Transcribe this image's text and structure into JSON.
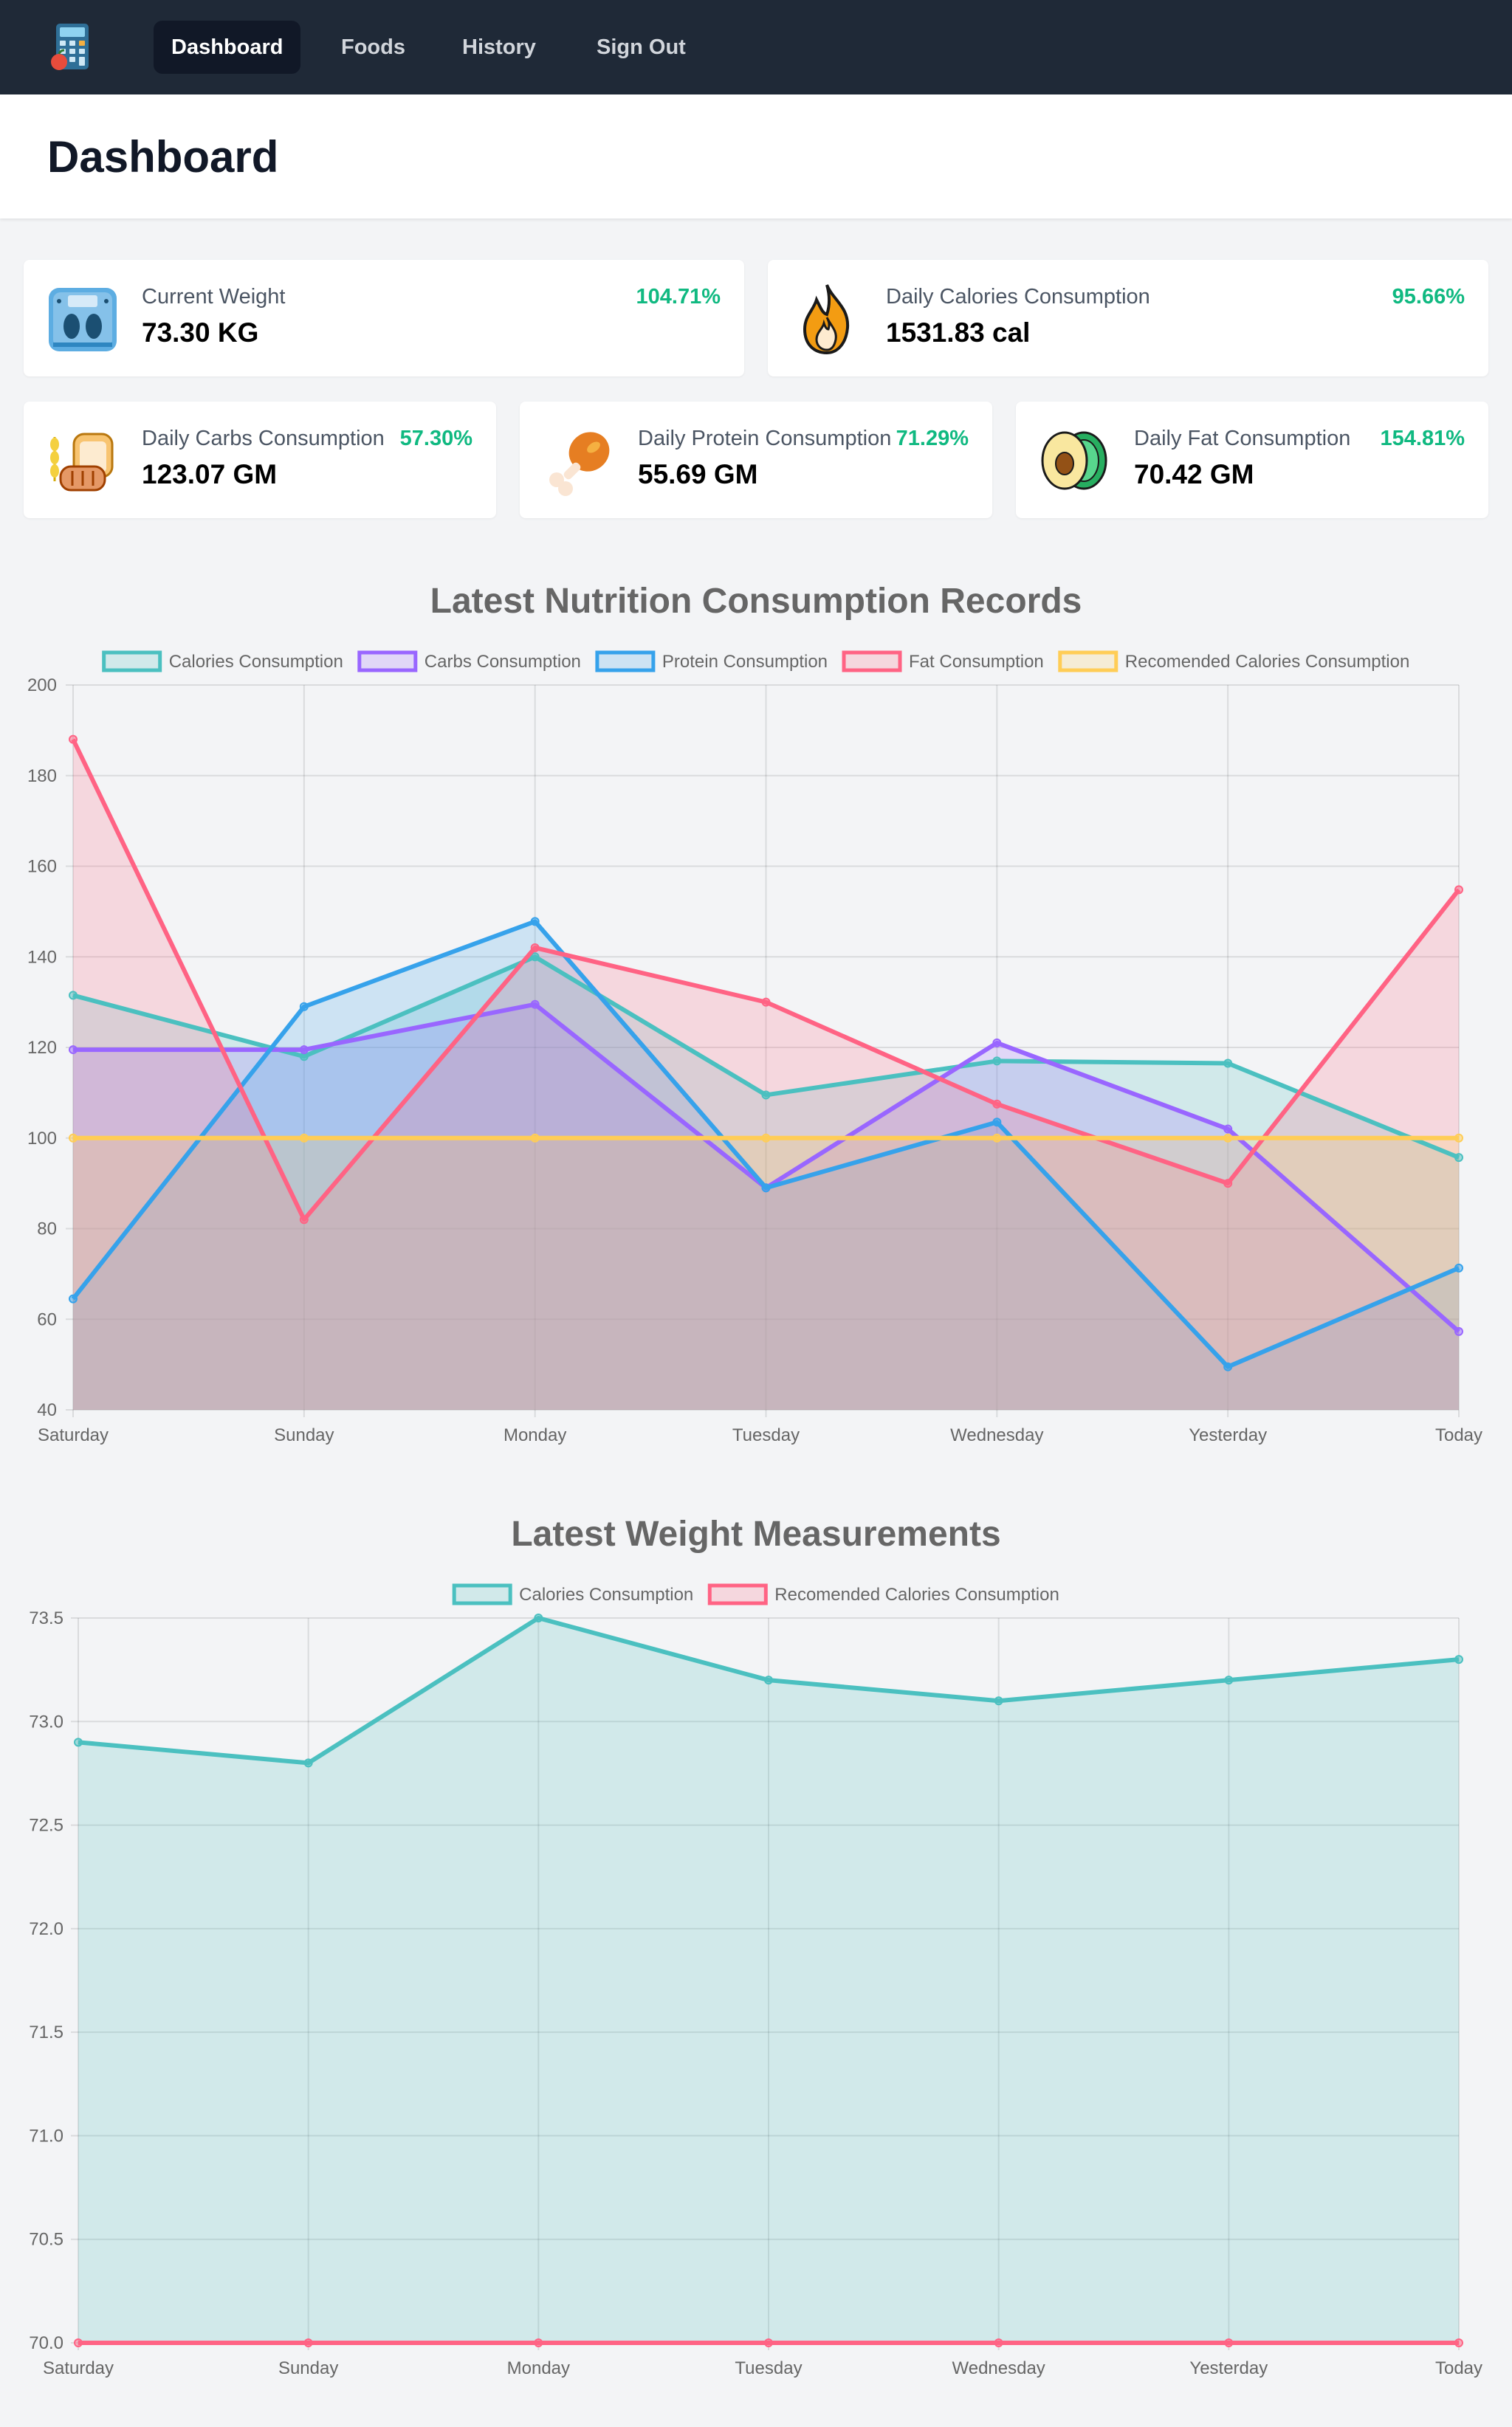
{
  "nav": {
    "logo_icon": "calculator-apple-icon",
    "links": [
      {
        "label": "Dashboard",
        "active": true
      },
      {
        "label": "Foods",
        "active": false
      },
      {
        "label": "History",
        "active": false
      },
      {
        "label": "Sign Out",
        "active": false
      }
    ]
  },
  "header": {
    "title": "Dashboard"
  },
  "stats": [
    {
      "icon": "scale-icon",
      "label": "Current Weight",
      "value": "73.30 KG",
      "percent": "104.71%"
    },
    {
      "icon": "flame-icon",
      "label": "Daily Calories Consumption",
      "value": "1531.83 cal",
      "percent": "95.66%"
    },
    {
      "icon": "bread-icon",
      "label": "Daily Carbs Consumption",
      "value": "123.07 GM",
      "percent": "57.30%"
    },
    {
      "icon": "chicken-leg-icon",
      "label": "Daily Protein Consumption",
      "value": "55.69 GM",
      "percent": "71.29%"
    },
    {
      "icon": "avocado-icon",
      "label": "Daily Fat Consumption",
      "value": "70.42 GM",
      "percent": "154.81%"
    }
  ],
  "colors": {
    "accent_positive": "#10b981",
    "nav_bg": "#1f2937",
    "teal": "#4bc0c0",
    "purple": "#9966ff",
    "blue": "#36a2eb",
    "pink": "#ff6384",
    "yellow": "#ffcd56"
  },
  "chart_data": [
    {
      "type": "line",
      "title": "Latest Nutrition Consumption Records",
      "categories": [
        "Saturday",
        "Sunday",
        "Monday",
        "Tuesday",
        "Wednesday",
        "Yesterday",
        "Today"
      ],
      "ylim": [
        40,
        200
      ],
      "yticks": [
        "40",
        "60",
        "80",
        "100",
        "120",
        "140",
        "160",
        "180",
        "200"
      ],
      "grid": true,
      "legend_position": "top",
      "filled": true,
      "series": [
        {
          "name": "Calories Consumption",
          "color": "#4bc0c0",
          "values": [
            131.5,
            118,
            140,
            109.5,
            117,
            116.5,
            95.7
          ]
        },
        {
          "name": "Carbs Consumption",
          "color": "#9966ff",
          "values": [
            119.5,
            119.5,
            129.5,
            89,
            121,
            102,
            57.3
          ]
        },
        {
          "name": "Protein Consumption",
          "color": "#36a2eb",
          "values": [
            64.5,
            129,
            147.8,
            89,
            103.5,
            49.5,
            71.3
          ]
        },
        {
          "name": "Fat Consumption",
          "color": "#ff6384",
          "values": [
            188,
            82,
            142,
            130,
            107.5,
            90,
            154.8
          ]
        },
        {
          "name": "Recomended Calories Consumption",
          "color": "#ffcd56",
          "values": [
            100,
            100,
            100,
            100,
            100,
            100,
            100
          ]
        }
      ]
    },
    {
      "type": "line",
      "title": "Latest Weight Measurements",
      "categories": [
        "Saturday",
        "Sunday",
        "Monday",
        "Tuesday",
        "Wednesday",
        "Yesterday",
        "Today"
      ],
      "ylim": [
        70,
        73.5
      ],
      "yticks": [
        "70.0",
        "70.5",
        "71.0",
        "71.5",
        "72.0",
        "72.5",
        "73.0",
        "73.5"
      ],
      "grid": true,
      "legend_position": "top",
      "filled": true,
      "series": [
        {
          "name": "Calories Consumption",
          "color": "#4bc0c0",
          "values": [
            72.9,
            72.8,
            73.5,
            73.2,
            73.1,
            73.2,
            73.3
          ]
        },
        {
          "name": "Recomended Calories Consumption",
          "color": "#ff6384",
          "values": [
            70,
            70,
            70,
            70,
            70,
            70,
            70
          ]
        }
      ]
    }
  ]
}
